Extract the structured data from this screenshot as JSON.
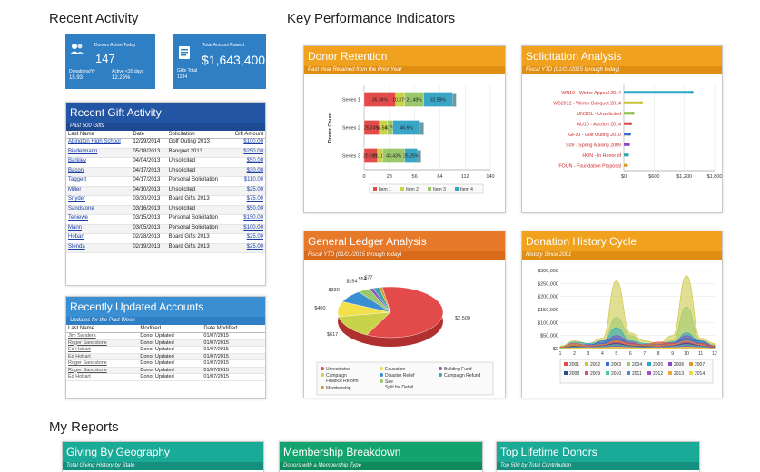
{
  "sections": {
    "recent_activity": "Recent Activity",
    "kpi": "Key Performance Indicators",
    "my_reports": "My Reports"
  },
  "tiles": {
    "donors": {
      "label": "Donors Active Today",
      "value": "147",
      "sub1_label": "Donations/Yr",
      "sub1_value": "15.93",
      "sub2_label": "Active <30 days",
      "sub2_value": "12.25%"
    },
    "raised": {
      "label": "Total Amount Raised",
      "value": "$1,643,400",
      "sub_label": "Gifts Total",
      "sub_value": "1234"
    }
  },
  "recent_gifts": {
    "title": "Recent Gift Activity",
    "subtitle": "Past 500 Gifts",
    "columns": [
      "Last Name",
      "Date",
      "Solicitation",
      "Gift Amount"
    ],
    "rows": [
      [
        "Abington High School",
        "12/29/2014",
        "Golf Outing 2013",
        "$100.00"
      ],
      [
        "Biedermann",
        "05/18/2013",
        "Banquet 2013",
        "$250.00"
      ],
      [
        "Barkley",
        "04/04/2013",
        "Unsolicited",
        "$50.00"
      ],
      [
        "Bacon",
        "04/17/2013",
        "Unsolicited",
        "$30.00"
      ],
      [
        "Taggert",
        "04/17/2013",
        "Personal Solicitation",
        "$110.00"
      ],
      [
        "Miller",
        "04/10/2013",
        "Unsolicited",
        "$25.00"
      ],
      [
        "Snyder",
        "03/30/2013",
        "Board Gifts 2013",
        "$75.00"
      ],
      [
        "Sandstone",
        "03/16/2013",
        "Unsolicited",
        "$50.00"
      ],
      [
        "Teniewe",
        "03/15/2013",
        "Personal Solicitation",
        "$150.00"
      ],
      [
        "Mann",
        "03/05/2013",
        "Personal Solicitation",
        "$100.00"
      ],
      [
        "Hobart",
        "02/28/2013",
        "Board Gifts 2013",
        "$25.00"
      ],
      [
        "Slenda",
        "02/19/2013",
        "Board Gifts 2013",
        "$25.00"
      ]
    ]
  },
  "updated_accounts": {
    "title": "Recently Updated Accounts",
    "subtitle": "Updates for the Past Week",
    "columns": [
      "Last Name",
      "Modified",
      "Date Modified"
    ],
    "rows": [
      [
        "Jim Sanders",
        "Donor Updated",
        "01/07/2015"
      ],
      [
        "Roger Sandstone",
        "Donor Updated",
        "01/07/2015"
      ],
      [
        "Ed Hobart",
        "Donor Updated",
        "01/07/2015"
      ],
      [
        "Ed Hobart",
        "Donor Updated",
        "01/07/2015"
      ],
      [
        "Roger Sandstone",
        "Donor Updated",
        "01/07/2015"
      ],
      [
        "Roger Sandstone",
        "Donor Updated",
        "01/07/2015"
      ],
      [
        "Ed Hobart",
        "Donor Updated",
        "01/07/2015"
      ]
    ]
  },
  "donor_retention": {
    "title": "Donor Retention",
    "subtitle": "Past Year Retained from the Prior Year"
  },
  "solicitation": {
    "title": "Solicitation Analysis",
    "subtitle": "Fiscal YTD (01/01/2015 through today)"
  },
  "ledger": {
    "title": "General Ledger Analysis",
    "subtitle": "Fiscal YTD (01/01/2015 through today)"
  },
  "history": {
    "title": "Donation History Cycle",
    "subtitle": "History Since 2001"
  },
  "reports": [
    {
      "title": "Giving By Geography",
      "subtitle": "Total Giving History by State"
    },
    {
      "title": "Membership Breakdown",
      "subtitle": "Donors with a Membership Type"
    },
    {
      "title": "Top Lifetime Donors",
      "subtitle": "Top 500 by Total Contribution"
    }
  ],
  "colors": {
    "tile_blue": "#2f7fc4",
    "gift_header": "#2255a4",
    "accounts_header": "#3a8fd3",
    "kpi_orange": "#f0a21e",
    "ledger_orange": "#e67a2a",
    "report_teal": "#1aaa98",
    "report_green": "#12a36e"
  },
  "chart_data": [
    {
      "type": "bar",
      "orientation": "horizontal",
      "stacked": true,
      "title": "Donor Retention",
      "ylabel": "Donor Count",
      "categories": [
        "Series 1",
        "Series 2",
        "Series 3"
      ],
      "xlim": [
        0,
        140
      ],
      "xticks": [
        0,
        28,
        56,
        84,
        112,
        140
      ],
      "series": [
        {
          "name": "Item 1",
          "color": "#e34b4b",
          "values": [
            35,
            17,
            15
          ],
          "labels": [
            "35.36%",
            "25.24%",
            "20.26%"
          ]
        },
        {
          "name": "Item 2",
          "color": "#c9d34a",
          "values": [
            10,
            9,
            6
          ],
          "labels": [
            "10.37%",
            "14.56%",
            "11.10%"
          ]
        },
        {
          "name": "Item 3",
          "color": "#9ac86a",
          "values": [
            21,
            6,
            24
          ],
          "labels": [
            "21.48%",
            "4.7%",
            "43.43%"
          ]
        },
        {
          "name": "Item 4",
          "color": "#3aa6c6",
          "values": [
            32,
            30,
            14
          ],
          "labels": [
            "32.59%",
            "46.6%",
            "25.25%"
          ]
        }
      ],
      "legend": "bottom"
    },
    {
      "type": "bar",
      "orientation": "horizontal",
      "title": "Solicitation Analysis",
      "categories": [
        "WN10 - Winter Appeal 2014",
        "WB2012 - Winter Banquet 2014",
        "UNSOL - Unsolicited",
        "AU10 - Auction 2014",
        "GF10 - Golf Outing 2010",
        "S09 - Spring Mailing 2009",
        "HON - In Honor of",
        "FOUN - Foundation Proposal"
      ],
      "values": [
        1350,
        350,
        180,
        130,
        110,
        90,
        70,
        50
      ],
      "colors": [
        "#2aa8c8",
        "#c8c43a",
        "#8ac04a",
        "#d84a4a",
        "#3a6ec8",
        "#8a4ac8",
        "#2aa8a8",
        "#d89a2a"
      ],
      "xticks": [
        "$0",
        "$600",
        "$1,200",
        "$1,800"
      ],
      "xlim": [
        0,
        1800
      ]
    },
    {
      "type": "pie",
      "title": "General Ledger Analysis",
      "slices": [
        {
          "name": "Unrestricted",
          "value": 2500,
          "label": "$2,500",
          "color": "#e34b4b"
        },
        {
          "name": "Campaign Finance Reform",
          "value": 617,
          "label": "$617",
          "color": "#c9d34a"
        },
        {
          "name": "Education",
          "value": 400,
          "label": "$400",
          "color": "#f2e04a"
        },
        {
          "name": "Disaster Relief",
          "value": 330,
          "label": "$330",
          "color": "#3a8fd3"
        },
        {
          "name": "See Split for Detail",
          "value": 154,
          "label": "$154",
          "color": "#9ac86a"
        },
        {
          "name": "Building Fund",
          "value": 54,
          "label": "$54",
          "color": "#8a5ac8"
        },
        {
          "name": "Campaign Refund",
          "value": 77,
          "label": "$77",
          "color": "#3aa6a6"
        },
        {
          "name": "Membership",
          "value": 40,
          "label": "",
          "color": "#d89a2a"
        }
      ],
      "legend": "bottom"
    },
    {
      "type": "area",
      "title": "Donation History Cycle",
      "x": [
        1,
        2,
        3,
        4,
        5,
        6,
        7,
        8,
        9,
        10,
        11,
        12
      ],
      "ylim": [
        0,
        300000
      ],
      "yticks": [
        "$0",
        "$50,000",
        "$100,000",
        "$150,000",
        "$200,000",
        "$250,000",
        "$300,000"
      ],
      "series": [
        {
          "name": "2001",
          "color": "#e34b4b",
          "values": [
            5000,
            20000,
            10000,
            15000,
            30000,
            20000,
            15000,
            25000,
            20000,
            15000,
            20000,
            10000
          ]
        },
        {
          "name": "2002",
          "color": "#c9c43a",
          "values": [
            10000,
            30000,
            20000,
            40000,
            260000,
            60000,
            30000,
            20000,
            50000,
            280000,
            40000,
            20000
          ]
        },
        {
          "name": "2003",
          "color": "#3a6ec8",
          "values": [
            5000,
            15000,
            10000,
            30000,
            40000,
            20000,
            10000,
            15000,
            25000,
            40000,
            30000,
            10000
          ]
        },
        {
          "name": "2004",
          "color": "#9ac86a",
          "values": [
            8000,
            12000,
            15000,
            20000,
            120000,
            50000,
            15000,
            20000,
            30000,
            160000,
            30000,
            15000
          ]
        },
        {
          "name": "2005",
          "color": "#2aa8c8",
          "values": [
            5000,
            25000,
            20000,
            25000,
            80000,
            30000,
            20000,
            15000,
            20000,
            60000,
            25000,
            10000
          ]
        },
        {
          "name": "2006",
          "color": "#8a4ac8",
          "values": [
            3000,
            10000,
            15000,
            20000,
            50000,
            25000,
            10000,
            10000,
            20000,
            50000,
            20000,
            8000
          ]
        },
        {
          "name": "2007",
          "color": "#d89a2a",
          "values": [
            4000,
            15000,
            10000,
            15000,
            30000,
            15000,
            10000,
            12000,
            15000,
            30000,
            15000,
            5000
          ]
        },
        {
          "name": "2008",
          "color": "#2a4a8a",
          "values": [
            2000,
            8000,
            6000,
            10000,
            20000,
            10000,
            8000,
            6000,
            10000,
            20000,
            10000,
            4000
          ]
        },
        {
          "name": "2009",
          "color": "#d84a8a",
          "values": [
            3000,
            6000,
            8000,
            12000,
            25000,
            12000,
            6000,
            8000,
            12000,
            25000,
            12000,
            5000
          ]
        },
        {
          "name": "2010",
          "color": "#4ac8a8",
          "values": [
            2000,
            5000,
            6000,
            8000,
            15000,
            8000,
            5000,
            6000,
            8000,
            15000,
            8000,
            3000
          ]
        },
        {
          "name": "2011",
          "color": "#4a8ac8",
          "values": [
            1000,
            4000,
            5000,
            6000,
            10000,
            6000,
            4000,
            5000,
            6000,
            10000,
            6000,
            2000
          ]
        },
        {
          "name": "2012",
          "color": "#a84ac8",
          "values": [
            1000,
            3000,
            4000,
            5000,
            8000,
            5000,
            3000,
            4000,
            5000,
            8000,
            5000,
            2000
          ]
        },
        {
          "name": "2013",
          "color": "#e8a83a",
          "values": [
            1000,
            3000,
            3000,
            4000,
            6000,
            4000,
            3000,
            3000,
            4000,
            6000,
            4000,
            1000
          ]
        },
        {
          "name": "2014",
          "color": "#e8d84a",
          "values": [
            1000,
            2000,
            3000,
            3000,
            5000,
            3000,
            2000,
            3000,
            3000,
            5000,
            3000,
            1000
          ]
        }
      ],
      "legend": "bottom"
    }
  ]
}
